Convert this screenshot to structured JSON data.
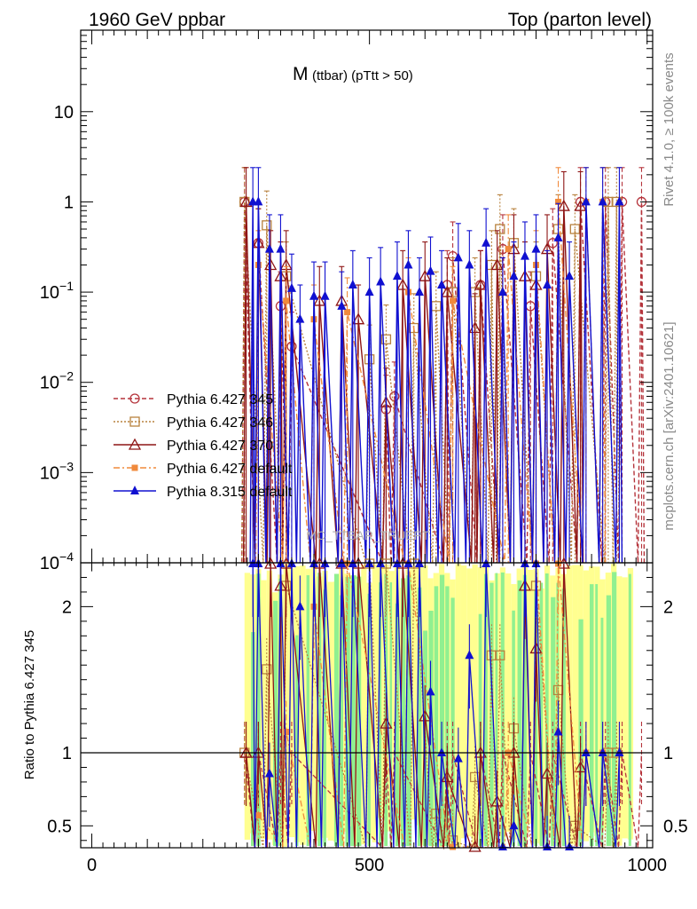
{
  "header": {
    "left": "1960 GeV ppbar",
    "right": "Top (parton level)"
  },
  "plot_title": {
    "main": "M",
    "sub": "(ttbar) (pTtt > 50)"
  },
  "side_labels": {
    "rivet": "Rivet 4.1.0, ≥ 100k events",
    "mcplots": "mcplots.cern.ch [arXiv:2401.10621]"
  },
  "watermark": "MC_TTBAR_TRUEPT",
  "ratio_ylabel": "Ratio to Pythia 6.427 345",
  "colors": {
    "s345": "#b5343c",
    "s346": "#b8823e",
    "s370": "#8e1515",
    "sdef": "#f08a3c",
    "p8": "#1010d0",
    "band_yellow": "#ffff90",
    "band_green": "#90f090"
  },
  "chart_data": {
    "type": "line",
    "title": "M (ttbar) (pTtt > 50)",
    "xlabel": "",
    "ylabel": "",
    "xlim": [
      -20,
      1010
    ],
    "ylim": [
      0.0001,
      80
    ],
    "yscale": "log",
    "x_ticks": [
      "0",
      "500",
      "1000"
    ],
    "y_ticks": [
      "10^-4",
      "10^-3",
      "10^-2",
      "10^-1",
      "1",
      "10"
    ],
    "ratio": {
      "ylabel": "Ratio to Pythia 6.427 345",
      "ylim": [
        0.35,
        2.3
      ],
      "ticks": [
        "0.5",
        "1",
        "2"
      ]
    },
    "legend": {
      "placement": "middle-left",
      "entries": [
        "Pythia 6.427 345",
        "Pythia 6.427 346",
        "Pythia 6.427 370",
        "Pythia 6.427 default",
        "Pythia 8.315 default"
      ]
    },
    "series": [
      {
        "name": "Pythia 6.427 345",
        "marker": "open-circle",
        "style": "dashed",
        "x": [
          275,
          300,
          340,
          360,
          530,
          545,
          640,
          650,
          700,
          740,
          790,
          830,
          880,
          925,
          955,
          990
        ],
        "y": [
          1.0,
          0.35,
          0.07,
          0.025,
          0.005,
          0.007,
          0.12,
          0.25,
          0.12,
          0.3,
          0.07,
          0.35,
          1.0,
          1.0,
          1.0,
          1.0
        ]
      },
      {
        "name": "Pythia 6.427 346",
        "marker": "open-square",
        "style": "dotted",
        "x": [
          275,
          315,
          350,
          500,
          530,
          580,
          620,
          650,
          690,
          720,
          735,
          760,
          800,
          840,
          870,
          930,
          945
        ],
        "y": [
          1.0,
          0.55,
          0.15,
          0.018,
          0.03,
          0.04,
          0.07,
          0.1,
          0.1,
          0.2,
          0.5,
          0.35,
          0.15,
          0.5,
          0.5,
          1.0,
          1.0
        ]
      },
      {
        "name": "Pythia 6.427 370",
        "marker": "open-triangle",
        "style": "solid",
        "x": [
          278,
          300,
          322,
          340,
          350,
          410,
          450,
          480,
          530,
          560,
          600,
          640,
          690,
          700,
          730,
          760,
          780,
          800,
          820,
          850,
          880
        ],
        "y": [
          1.0,
          0.35,
          0.2,
          0.15,
          0.2,
          0.08,
          0.08,
          0.05,
          0.006,
          0.12,
          0.15,
          0.1,
          0.04,
          0.12,
          0.2,
          0.3,
          0.15,
          0.12,
          0.3,
          0.9,
          0.9
        ]
      },
      {
        "name": "Pythia 6.427 default",
        "marker": "filled-square",
        "style": "dashdot",
        "x": [
          300,
          350,
          400,
          460,
          570,
          650,
          750,
          800,
          840,
          890,
          920
        ],
        "y": [
          0.2,
          0.08,
          0.05,
          0.06,
          0.1,
          0.08,
          0.3,
          0.2,
          1.0,
          1.0,
          1.0
        ]
      },
      {
        "name": "Pythia 8.315 default",
        "marker": "filled-triangle",
        "style": "solid",
        "x": [
          290,
          300,
          320,
          340,
          360,
          375,
          400,
          420,
          450,
          470,
          500,
          520,
          550,
          570,
          590,
          610,
          630,
          660,
          680,
          710,
          740,
          760,
          780,
          800,
          820,
          840,
          860,
          890,
          920,
          950
        ],
        "y": [
          1.0,
          1.0,
          0.3,
          0.3,
          0.11,
          0.05,
          0.09,
          0.09,
          0.07,
          0.12,
          0.1,
          0.13,
          0.15,
          0.2,
          0.1,
          0.17,
          0.12,
          0.24,
          0.2,
          0.35,
          0.1,
          0.15,
          0.25,
          0.3,
          0.12,
          0.4,
          0.15,
          1.0,
          1.0,
          1.0
        ]
      }
    ]
  }
}
